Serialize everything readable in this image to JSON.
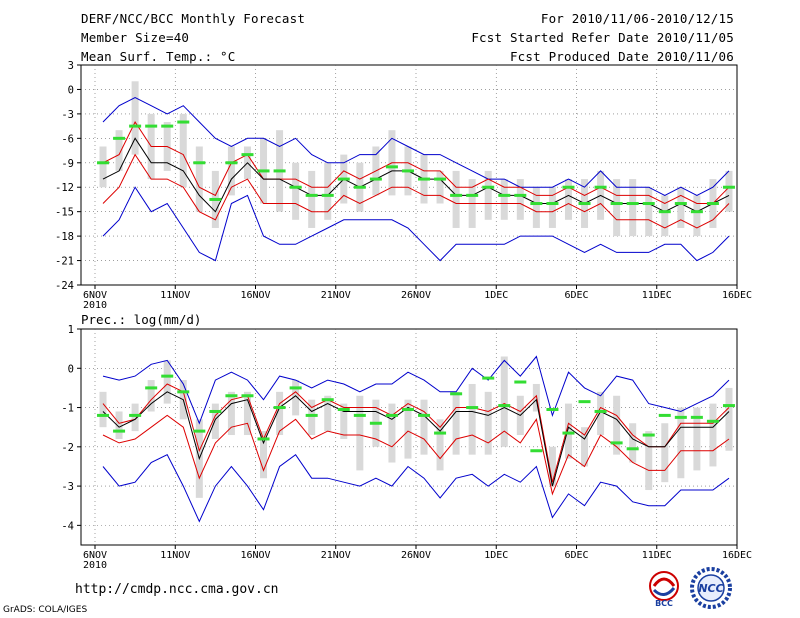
{
  "header": {
    "title": "DERF/NCC/BCC Monthly Forecast",
    "member_size": "Member Size=40",
    "variable": "Mean Surf. Temp.: °C",
    "forecast_period": "For 2010/11/06-2010/12/15",
    "refer_date": "Fcst Started Refer Date 2010/11/05",
    "produced_date": "Fcst Produced Date 2010/11/06"
  },
  "footer": {
    "url": "http://cmdp.ncc.cma.gov.cn",
    "grads": "GrADS: COLA/IGES",
    "logo_bcc": "BCC",
    "logo_ncc": "NCC"
  },
  "colors": {
    "envelope": "#0000cc",
    "spread": "#dd0000",
    "mean": "#000000",
    "observed": "#33dd33",
    "box": "#d9d9d9",
    "grid": "#666666"
  },
  "chart_data": [
    {
      "type": "line",
      "title": "Mean Surf. Temp.: °C",
      "ylabel": "Mean Surf. Temp. (°C)",
      "ylim": [
        -24,
        3
      ],
      "yticks": [
        "3",
        "0",
        "-3",
        "-6",
        "-9",
        "-12",
        "-15",
        "-18",
        "-21",
        "-24"
      ],
      "xlim": [
        0,
        40
      ],
      "xticks": [
        {
          "x": 0,
          "label": "6NOV",
          "sub": "2010"
        },
        {
          "x": 5,
          "label": "11NOV"
        },
        {
          "x": 10,
          "label": "16NOV"
        },
        {
          "x": 15,
          "label": "21NOV"
        },
        {
          "x": 20,
          "label": "26NOV"
        },
        {
          "x": 25,
          "label": "1DEC"
        },
        {
          "x": 30,
          "label": "6DEC"
        },
        {
          "x": 35,
          "label": "11DEC"
        },
        {
          "x": 40,
          "label": "16DEC"
        }
      ],
      "grid": true,
      "series": [
        {
          "name": "ensemble max",
          "values": [
            -4,
            -2,
            -1,
            -2,
            -3,
            -2,
            -4,
            -6,
            -7,
            -6,
            -6,
            -7,
            -6,
            -8,
            -9,
            -9,
            -8,
            -8,
            -6,
            -7,
            -8,
            -8,
            -9,
            -10,
            -11,
            -11,
            -12,
            -12,
            -12,
            -11,
            -12,
            -10,
            -12,
            -12,
            -12,
            -13,
            -12,
            -13,
            -12,
            -10
          ]
        },
        {
          "name": "spread upper",
          "values": [
            -9,
            -8,
            -4,
            -7,
            -7,
            -8,
            -12,
            -13,
            -9,
            -8,
            -11,
            -11,
            -11,
            -12,
            -12,
            -10,
            -11,
            -10,
            -9,
            -9,
            -10,
            -10,
            -12,
            -12,
            -11,
            -12,
            -12,
            -13,
            -13,
            -12,
            -13,
            -12,
            -13,
            -13,
            -13,
            -14,
            -13,
            -14,
            -14,
            -12
          ]
        },
        {
          "name": "ensemble mean",
          "values": [
            -11,
            -10,
            -6,
            -9,
            -9,
            -10,
            -13,
            -15,
            -11,
            -9,
            -11,
            -11,
            -12,
            -13,
            -13,
            -11,
            -12,
            -11,
            -10,
            -10,
            -11,
            -11,
            -13,
            -13,
            -12,
            -13,
            -13,
            -14,
            -14,
            -13,
            -14,
            -13,
            -14,
            -14,
            -14,
            -15,
            -14,
            -15,
            -14,
            -13
          ]
        },
        {
          "name": "spread lower",
          "values": [
            -14,
            -12,
            -8,
            -11,
            -11,
            -12,
            -15,
            -16,
            -12,
            -11,
            -14,
            -14,
            -14,
            -15,
            -15,
            -13,
            -14,
            -13,
            -12,
            -12,
            -13,
            -13,
            -14,
            -14,
            -14,
            -14,
            -14,
            -15,
            -15,
            -14,
            -15,
            -14,
            -16,
            -16,
            -16,
            -17,
            -16,
            -17,
            -16,
            -14
          ]
        },
        {
          "name": "ensemble min",
          "values": [
            -18,
            -16,
            -12,
            -15,
            -14,
            -17,
            -20,
            -21,
            -14,
            -13,
            -18,
            -19,
            -19,
            -18,
            -17,
            -16,
            -16,
            -16,
            -16,
            -17,
            -19,
            -21,
            -19,
            -19,
            -19,
            -19,
            -18,
            -18,
            -18,
            -19,
            -20,
            -19,
            -20,
            -20,
            -20,
            -19,
            -19,
            -21,
            -20,
            -18
          ]
        }
      ],
      "boxes": [
        {
          "lo": -12,
          "hi": -7
        },
        {
          "lo": -10,
          "hi": -5
        },
        {
          "lo": -8,
          "hi": 1
        },
        {
          "lo": -11,
          "hi": -3
        },
        {
          "lo": -10,
          "hi": -4
        },
        {
          "lo": -12,
          "hi": -3
        },
        {
          "lo": -15,
          "hi": -7
        },
        {
          "lo": -17,
          "hi": -10
        },
        {
          "lo": -13,
          "hi": -7
        },
        {
          "lo": -11,
          "hi": -7
        },
        {
          "lo": -14,
          "hi": -6
        },
        {
          "lo": -15,
          "hi": -5
        },
        {
          "lo": -16,
          "hi": -9
        },
        {
          "lo": -17,
          "hi": -10
        },
        {
          "lo": -16,
          "hi": -9
        },
        {
          "lo": -14,
          "hi": -8
        },
        {
          "lo": -15,
          "hi": -9
        },
        {
          "lo": -13,
          "hi": -7
        },
        {
          "lo": -13,
          "hi": -5
        },
        {
          "lo": -13,
          "hi": -7
        },
        {
          "lo": -14,
          "hi": -8
        },
        {
          "lo": -14,
          "hi": -10
        },
        {
          "lo": -17,
          "hi": -10
        },
        {
          "lo": -17,
          "hi": -11
        },
        {
          "lo": -16,
          "hi": -10
        },
        {
          "lo": -16,
          "hi": -11
        },
        {
          "lo": -16,
          "hi": -11
        },
        {
          "lo": -17,
          "hi": -12
        },
        {
          "lo": -17,
          "hi": -12
        },
        {
          "lo": -16,
          "hi": -11
        },
        {
          "lo": -17,
          "hi": -11
        },
        {
          "lo": -16,
          "hi": -10
        },
        {
          "lo": -18,
          "hi": -11
        },
        {
          "lo": -18,
          "hi": -11
        },
        {
          "lo": -18,
          "hi": -12
        },
        {
          "lo": -18,
          "hi": -13
        },
        {
          "lo": -17,
          "hi": -12
        },
        {
          "lo": -18,
          "hi": -13
        },
        {
          "lo": -17,
          "hi": -11
        },
        {
          "lo": -15,
          "hi": -10
        }
      ],
      "observed": [
        -9,
        -6,
        -4.5,
        -4.5,
        -4.5,
        -4,
        -9,
        -13.5,
        -9,
        -8,
        -10,
        -10,
        -12,
        -13,
        -13,
        -11,
        -12,
        -11,
        -9.5,
        -10,
        -11,
        -11,
        -13,
        -13,
        -12,
        -13,
        -13,
        -14,
        -14,
        -12,
        -14,
        -12,
        -14,
        -14,
        -14,
        -15,
        -14,
        -15,
        -14,
        -12
      ]
    },
    {
      "type": "line",
      "title": "Prec.: log(mm/d)",
      "ylabel": "log(mm/d)",
      "ylim": [
        -4.5,
        1
      ],
      "yticks": [
        "1",
        "0",
        "-1",
        "-2",
        "-3",
        "-4"
      ],
      "xlim": [
        0,
        40
      ],
      "xticks": [
        {
          "x": 0,
          "label": "6NOV",
          "sub": "2010"
        },
        {
          "x": 5,
          "label": "11NOV"
        },
        {
          "x": 10,
          "label": "16NOV"
        },
        {
          "x": 15,
          "label": "21NOV"
        },
        {
          "x": 20,
          "label": "26NOV"
        },
        {
          "x": 25,
          "label": "1DEC"
        },
        {
          "x": 30,
          "label": "6DEC"
        },
        {
          "x": 35,
          "label": "11DEC"
        },
        {
          "x": 40,
          "label": "16DEC"
        }
      ],
      "grid": true,
      "series": [
        {
          "name": "ensemble max",
          "values": [
            -0.2,
            -0.3,
            -0.2,
            0.1,
            0.2,
            -0.4,
            -1.4,
            -0.3,
            -0.1,
            -0.3,
            -0.8,
            -0.2,
            -0.3,
            -0.5,
            -0.3,
            -0.4,
            -0.6,
            -0.4,
            -0.4,
            -0.1,
            -0.3,
            -0.6,
            -0.6,
            0.0,
            -0.3,
            0.2,
            -0.2,
            0.3,
            -1.2,
            -0.1,
            -0.5,
            -0.7,
            -0.2,
            -0.3,
            -0.9,
            -1.0,
            -1.1,
            -0.9,
            -0.7,
            -0.3
          ]
        },
        {
          "name": "spread upper",
          "values": [
            -0.9,
            -1.4,
            -1.3,
            -0.8,
            -0.4,
            -0.6,
            -2.1,
            -1.2,
            -0.8,
            -0.7,
            -1.8,
            -0.9,
            -0.6,
            -1.0,
            -0.8,
            -1.0,
            -1.0,
            -1.0,
            -1.2,
            -0.9,
            -1.1,
            -1.5,
            -1.0,
            -1.0,
            -1.1,
            -0.9,
            -1.1,
            -0.7,
            -2.9,
            -1.4,
            -1.7,
            -1.0,
            -1.2,
            -1.7,
            -2.0,
            -2.0,
            -1.4,
            -1.4,
            -1.4,
            -1.0
          ]
        },
        {
          "name": "ensemble mean",
          "values": [
            -1.1,
            -1.5,
            -1.3,
            -0.9,
            -0.6,
            -0.8,
            -2.3,
            -1.3,
            -0.9,
            -0.8,
            -1.9,
            -1.0,
            -0.7,
            -1.1,
            -0.9,
            -1.1,
            -1.1,
            -1.1,
            -1.3,
            -1.0,
            -1.2,
            -1.6,
            -1.1,
            -1.1,
            -1.2,
            -1.0,
            -1.2,
            -0.8,
            -3.0,
            -1.5,
            -1.8,
            -1.1,
            -1.3,
            -1.8,
            -2.0,
            -2.0,
            -1.5,
            -1.5,
            -1.5,
            -1.1
          ]
        },
        {
          "name": "spread lower",
          "values": [
            -1.7,
            -1.9,
            -1.8,
            -1.5,
            -1.2,
            -1.5,
            -2.8,
            -1.9,
            -1.5,
            -1.4,
            -2.6,
            -1.6,
            -1.3,
            -1.8,
            -1.6,
            -1.7,
            -1.7,
            -1.8,
            -2.0,
            -1.6,
            -1.8,
            -2.3,
            -1.8,
            -1.7,
            -1.9,
            -1.6,
            -1.9,
            -1.3,
            -3.2,
            -2.2,
            -2.5,
            -1.7,
            -2.0,
            -2.4,
            -2.6,
            -2.6,
            -2.1,
            -2.1,
            -2.1,
            -1.8
          ]
        },
        {
          "name": "ensemble min",
          "values": [
            -2.5,
            -3.0,
            -2.9,
            -2.4,
            -2.2,
            -3.0,
            -3.9,
            -3.0,
            -2.5,
            -3.0,
            -3.6,
            -2.5,
            -2.2,
            -2.8,
            -2.8,
            -2.9,
            -3.0,
            -2.8,
            -3.0,
            -2.5,
            -2.8,
            -3.3,
            -2.8,
            -2.7,
            -3.0,
            -2.7,
            -2.9,
            -2.5,
            -3.8,
            -3.2,
            -3.5,
            -2.9,
            -3.0,
            -3.4,
            -3.5,
            -3.5,
            -3.1,
            -3.1,
            -3.1,
            -2.8
          ]
        }
      ],
      "boxes": [
        {
          "lo": -1.5,
          "hi": -0.6
        },
        {
          "lo": -1.8,
          "hi": -1.1
        },
        {
          "lo": -1.6,
          "hi": -0.9
        },
        {
          "lo": -1.1,
          "hi": -0.3
        },
        {
          "lo": -0.9,
          "hi": 0.2
        },
        {
          "lo": -1.3,
          "hi": -0.3
        },
        {
          "lo": -3.3,
          "hi": -1.3
        },
        {
          "lo": -1.8,
          "hi": -0.9
        },
        {
          "lo": -1.7,
          "hi": -0.6
        },
        {
          "lo": -1.7,
          "hi": -0.6
        },
        {
          "lo": -2.8,
          "hi": -1.6
        },
        {
          "lo": -1.7,
          "hi": -0.6
        },
        {
          "lo": -1.2,
          "hi": -0.3
        },
        {
          "lo": -1.7,
          "hi": -0.8
        },
        {
          "lo": -1.6,
          "hi": -0.7
        },
        {
          "lo": -1.8,
          "hi": -0.9
        },
        {
          "lo": -2.6,
          "hi": -0.7
        },
        {
          "lo": -2.0,
          "hi": -0.8
        },
        {
          "lo": -2.4,
          "hi": -0.9
        },
        {
          "lo": -2.3,
          "hi": -0.8
        },
        {
          "lo": -2.2,
          "hi": -0.8
        },
        {
          "lo": -2.6,
          "hi": -1.3
        },
        {
          "lo": -2.2,
          "hi": -0.6
        },
        {
          "lo": -2.2,
          "hi": -0.4
        },
        {
          "lo": -2.2,
          "hi": -0.6
        },
        {
          "lo": -2.0,
          "hi": 0.3
        },
        {
          "lo": -1.7,
          "hi": -0.7
        },
        {
          "lo": -1.1,
          "hi": -0.4
        },
        {
          "lo": -3.0,
          "hi": -2.0
        },
        {
          "lo": -2.3,
          "hi": -0.9
        },
        {
          "lo": -2.5,
          "hi": -1.5
        },
        {
          "lo": -1.7,
          "hi": -0.6
        },
        {
          "lo": -2.2,
          "hi": -0.7
        },
        {
          "lo": -2.4,
          "hi": -1.4
        },
        {
          "lo": -3.1,
          "hi": -1.6
        },
        {
          "lo": -2.9,
          "hi": -1.4
        },
        {
          "lo": -2.8,
          "hi": -1.0
        },
        {
          "lo": -2.6,
          "hi": -1.0
        },
        {
          "lo": -2.5,
          "hi": -0.9
        },
        {
          "lo": -2.1,
          "hi": -0.5
        }
      ],
      "observed": [
        -1.2,
        -1.6,
        -1.2,
        -0.5,
        -0.2,
        -0.6,
        -1.6,
        -1.1,
        -0.7,
        -0.7,
        -1.8,
        -1.0,
        -0.5,
        -1.2,
        -0.8,
        -1.05,
        -1.2,
        -1.4,
        -1.2,
        -1.05,
        -1.2,
        -1.65,
        -0.65,
        -1.0,
        -0.25,
        -0.95,
        -0.35,
        -2.1,
        -1.05,
        -1.65,
        -0.85,
        -1.1,
        -1.9,
        -2.05,
        -1.7,
        -1.2,
        -1.25,
        -1.25,
        -1.35,
        -0.95
      ]
    }
  ]
}
